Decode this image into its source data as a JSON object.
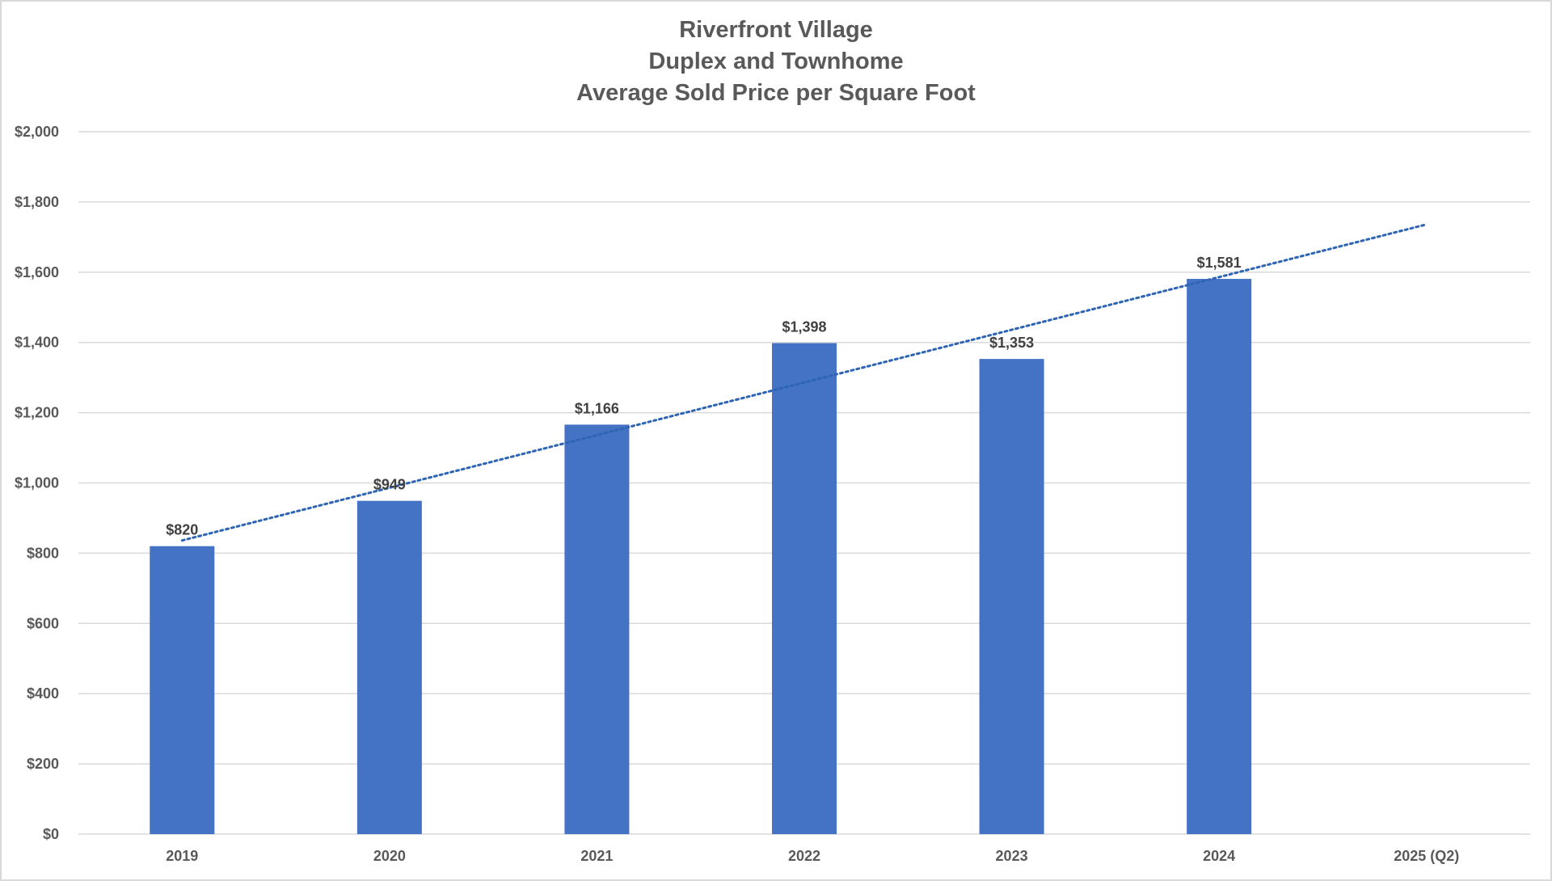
{
  "chart_data": {
    "type": "bar",
    "title": [
      "Riverfront Village",
      "Duplex and Townhome",
      "Average Sold Price per Square Foot"
    ],
    "categories": [
      "2019",
      "2020",
      "2021",
      "2022",
      "2023",
      "2024",
      "2025 (Q2)"
    ],
    "values": [
      820,
      949,
      1166,
      1398,
      1353,
      1581,
      null
    ],
    "data_labels": [
      "$820",
      "$949",
      "$1,166",
      "$1,398",
      "$1,353",
      "$1,581",
      ""
    ],
    "y_ticks": [
      "$0",
      "$200",
      "$400",
      "$600",
      "$800",
      "$1,000",
      "$1,200",
      "$1,400",
      "$1,600",
      "$1,800",
      "$2,000"
    ],
    "ylim": [
      0,
      2000
    ],
    "xlabel": "",
    "ylabel": "",
    "grid": true,
    "legend": "none",
    "trendline": {
      "type": "linear",
      "style": "dotted"
    },
    "colors": {
      "bar": "#4472c4",
      "trendline": "#2e64b4",
      "grid": "#d9d9d9",
      "text": "#595959",
      "label": "#404040"
    }
  }
}
